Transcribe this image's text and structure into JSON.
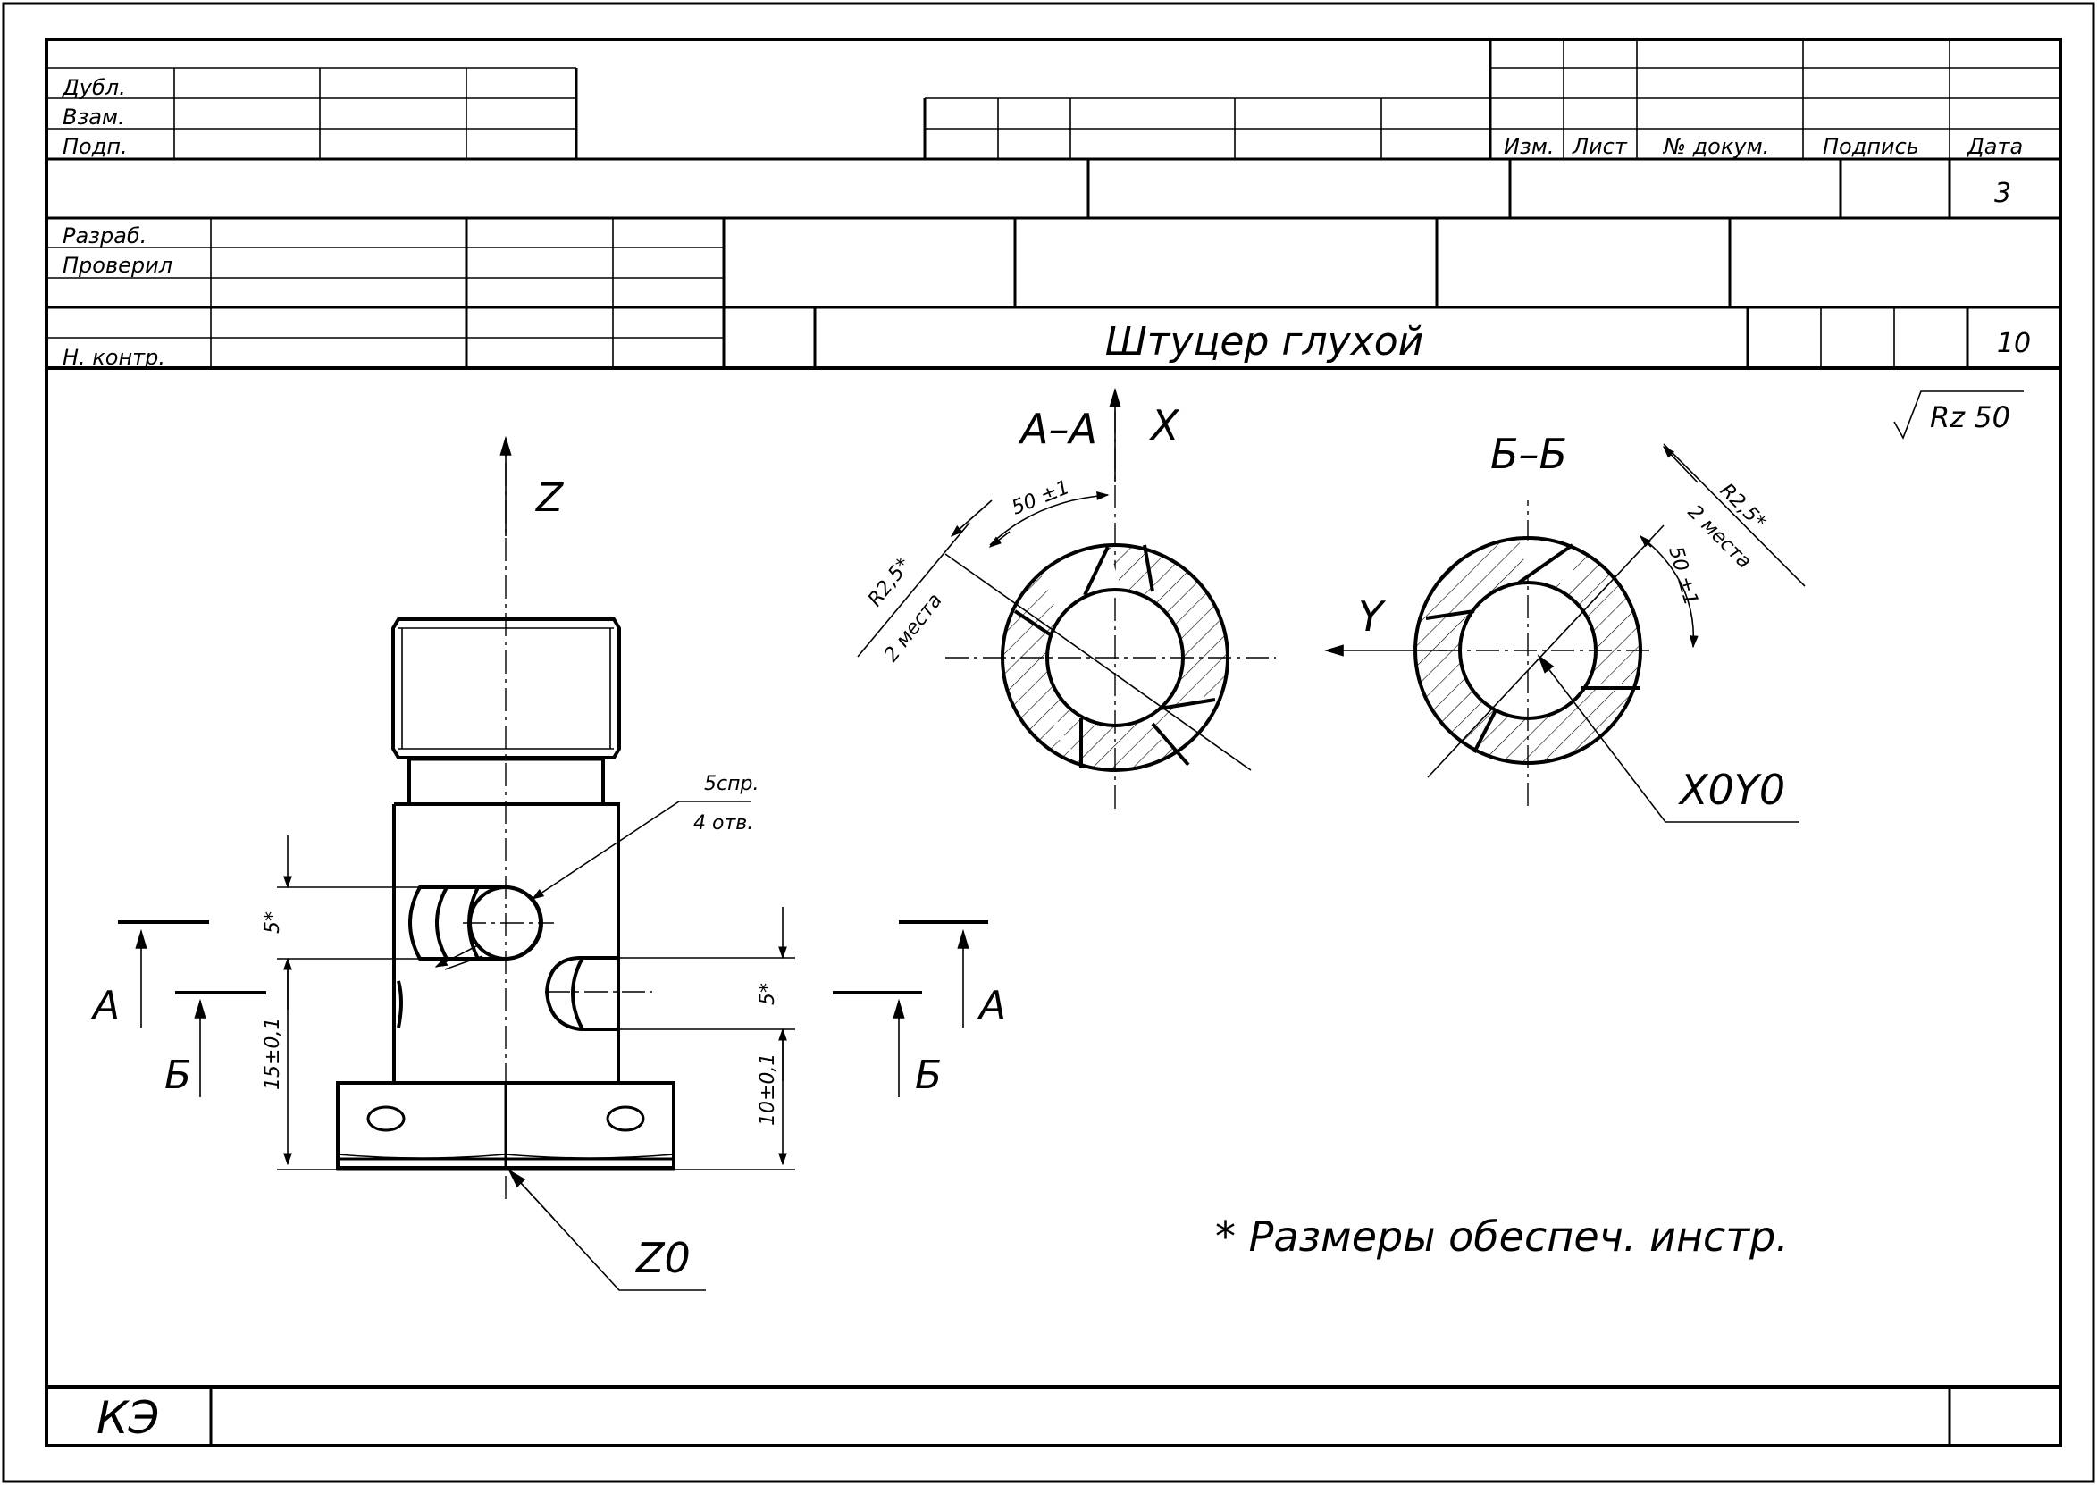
{
  "title_block": {
    "left_labels": [
      "Дубл.",
      "Взам.",
      "Подп."
    ],
    "revision_headers": [
      "Изм.",
      "Лист",
      "№ докум.",
      "Подпись",
      "Дата"
    ],
    "sheet_number": "3",
    "roles": [
      "Разраб.",
      "Проверил",
      "Н. контр."
    ],
    "part_name": "Штуцер глухой",
    "operation_number": "10"
  },
  "drawing": {
    "roughness": "Rz 50",
    "section_aa": "А–А",
    "section_bb": "Б–Б",
    "axis_x": "X",
    "axis_y": "Y",
    "axis_z": "Z",
    "origin_xy": "X0Y0",
    "origin_z": "Z0",
    "cut_a": "А",
    "cut_b": "Б",
    "hole_note_1": "5спр.",
    "hole_note_2": "4 отв.",
    "dim_5": "5*",
    "dim_15": "15±0,1",
    "dim_10": "10±0,1",
    "dim_r": "R2,5*",
    "dim_places": "2 места",
    "dim_angle": "50 ±1",
    "note": "* Размеры обеспеч. инстр."
  },
  "footer": {
    "code": "КЭ"
  }
}
